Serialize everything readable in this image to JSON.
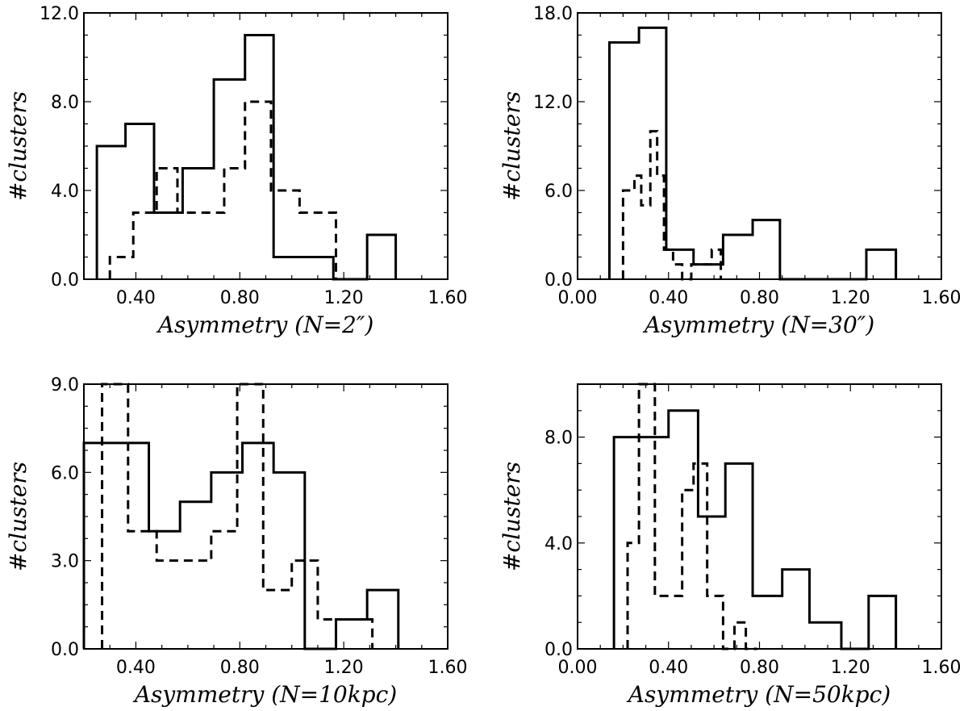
{
  "figure": {
    "panels": 4
  },
  "chart_data": [
    {
      "type": "histogram",
      "ylabel": "#clusters",
      "xlabel": "Asymmetry (N=2″)",
      "xlim": [
        0.2,
        1.6
      ],
      "ylim": [
        0,
        12
      ],
      "xticks": [
        "0.40",
        "0.80",
        "1.20",
        "1.60"
      ],
      "xtick_values": [
        0.4,
        0.8,
        1.2,
        1.6
      ],
      "yticks": [
        "0.0",
        "4.0",
        "8.0",
        "12.0"
      ],
      "ytick_values": [
        0,
        4,
        8,
        12
      ],
      "series": [
        {
          "name": "solid",
          "style": "solid",
          "edges": [
            0.25,
            0.36,
            0.47,
            0.58,
            0.7,
            0.82,
            0.93,
            1.04,
            1.16,
            1.29,
            1.4
          ],
          "counts": [
            6,
            7,
            3,
            5,
            9,
            11,
            1,
            1,
            0,
            2
          ]
        },
        {
          "name": "dashed",
          "style": "dashed",
          "edges": [
            0.3,
            0.39,
            0.48,
            0.56,
            0.65,
            0.74,
            0.82,
            0.92,
            1.03,
            1.17
          ],
          "counts": [
            1,
            3,
            5,
            3,
            3,
            5,
            8,
            4,
            3
          ]
        }
      ]
    },
    {
      "type": "histogram",
      "ylabel": "#clusters",
      "xlabel": "Asymmetry (N=30″)",
      "xlim": [
        0.0,
        1.6
      ],
      "ylim": [
        0,
        18
      ],
      "xticks": [
        "0.00",
        "0.40",
        "0.80",
        "1.20",
        "1.60"
      ],
      "xtick_values": [
        0.0,
        0.4,
        0.8,
        1.2,
        1.6
      ],
      "yticks": [
        "0.0",
        "6.0",
        "12.0",
        "18.0"
      ],
      "ytick_values": [
        0,
        6,
        12,
        18
      ],
      "series": [
        {
          "name": "solid",
          "style": "solid",
          "edges": [
            0.14,
            0.27,
            0.39,
            0.51,
            0.64,
            0.77,
            0.89,
            1.02,
            1.14,
            1.27,
            1.4
          ],
          "counts": [
            16,
            17,
            2,
            1,
            3,
            4,
            0,
            0,
            0,
            2
          ]
        },
        {
          "name": "dashed",
          "style": "dashed",
          "edges": [
            0.2,
            0.25,
            0.28,
            0.32,
            0.35,
            0.38,
            0.42,
            0.46,
            0.5,
            0.55,
            0.59,
            0.63
          ],
          "counts": [
            6,
            7,
            5,
            10,
            7,
            2,
            1,
            0,
            1,
            1,
            2
          ]
        }
      ]
    },
    {
      "type": "histogram",
      "ylabel": "#clusters",
      "xlabel": "Asymmetry (N=10kpc)",
      "xlim": [
        0.2,
        1.6
      ],
      "ylim": [
        0,
        9
      ],
      "xticks": [
        "0.40",
        "0.80",
        "1.20",
        "1.60"
      ],
      "xtick_values": [
        0.4,
        0.8,
        1.2,
        1.6
      ],
      "yticks": [
        "0.0",
        "3.0",
        "6.0",
        "9.0"
      ],
      "ytick_values": [
        0,
        3,
        6,
        9
      ],
      "series": [
        {
          "name": "solid",
          "style": "solid",
          "edges": [
            0.2,
            0.33,
            0.45,
            0.57,
            0.69,
            0.81,
            0.93,
            1.05,
            1.17,
            1.29,
            1.41
          ],
          "counts": [
            7,
            7,
            4,
            5,
            6,
            7,
            6,
            0,
            1,
            2
          ]
        },
        {
          "name": "dashed",
          "style": "dashed",
          "edges": [
            0.27,
            0.37,
            0.48,
            0.58,
            0.69,
            0.79,
            0.89,
            1.0,
            1.1,
            1.2,
            1.31
          ],
          "counts": [
            9,
            4,
            3,
            3,
            4,
            9,
            2,
            3,
            1,
            1
          ]
        }
      ]
    },
    {
      "type": "histogram",
      "ylabel": "#clusters",
      "xlabel": "Asymmetry (N=50kpc)",
      "xlim": [
        0.0,
        1.6
      ],
      "ylim": [
        0,
        10
      ],
      "xticks": [
        "0.00",
        "0.40",
        "0.80",
        "1.20",
        "1.60"
      ],
      "xtick_values": [
        0.0,
        0.4,
        0.8,
        1.2,
        1.6
      ],
      "yticks": [
        "0.0",
        "4.0",
        "8.0"
      ],
      "ytick_values": [
        0,
        4,
        8
      ],
      "series": [
        {
          "name": "solid",
          "style": "solid",
          "edges": [
            0.16,
            0.28,
            0.4,
            0.53,
            0.65,
            0.77,
            0.9,
            1.02,
            1.16,
            1.28,
            1.4
          ],
          "counts": [
            8,
            8,
            9,
            5,
            7,
            2,
            3,
            1,
            0,
            2
          ]
        },
        {
          "name": "dashed",
          "style": "dashed",
          "edges": [
            0.22,
            0.27,
            0.34,
            0.46,
            0.51,
            0.57,
            0.64,
            0.69,
            0.74,
            0.79
          ],
          "counts": [
            4,
            10,
            2,
            6,
            7,
            2,
            0,
            1,
            0
          ]
        }
      ]
    }
  ]
}
